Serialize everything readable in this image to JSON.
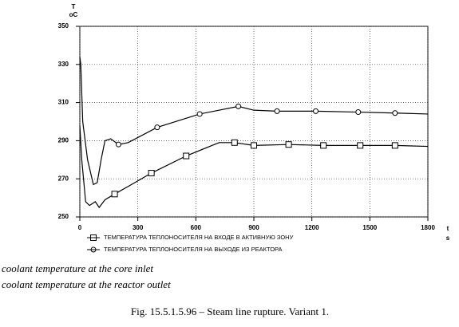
{
  "chart_data": {
    "type": "line",
    "ylabel": "T",
    "yunit": "oC",
    "xlabel": "t",
    "xunit": "s",
    "xlim": [
      0,
      1800
    ],
    "xticks": [
      0,
      300,
      600,
      900,
      1200,
      1500,
      1800
    ],
    "ylim": [
      250,
      350
    ],
    "yticks": [
      250,
      270,
      290,
      310,
      330,
      350
    ],
    "grid": true,
    "series": [
      {
        "name": "ТЕМПЕРАТУРА ТЕПЛОНОСИТЕЛЯ НА ВХОДЕ В АКТИВНУЮ ЗОНУ",
        "marker": "square",
        "color": "#000000",
        "x": [
          0,
          10,
          30,
          50,
          80,
          100,
          130,
          180,
          250,
          370,
          550,
          720,
          800,
          900,
          1080,
          1260,
          1450,
          1630,
          1800
        ],
        "values": [
          298,
          280,
          258,
          256,
          258,
          255,
          259,
          262,
          266,
          273,
          282,
          289,
          289,
          287.5,
          288,
          287.5,
          287.5,
          287.5,
          287
        ]
      },
      {
        "name": "ТЕМПЕРАТУРА ТЕПЛОНОСИТЕЛЯ НА ВЫХОДЕ ИЗ РЕАКТОРА",
        "marker": "circle",
        "color": "#000000",
        "x": [
          0,
          5,
          15,
          40,
          70,
          90,
          110,
          130,
          160,
          200,
          250,
          400,
          620,
          820,
          900,
          1020,
          1220,
          1440,
          1630,
          1800
        ],
        "values": [
          334,
          330,
          300,
          280,
          267,
          268,
          280,
          290,
          291,
          288,
          289,
          297,
          304,
          308,
          306,
          305.5,
          305.5,
          305,
          304.5,
          304
        ]
      }
    ]
  },
  "translations": [
    "coolant temperature   at the core inlet",
    "coolant temperature   at the reactor outlet"
  ],
  "caption": "Fig. 15.5.1.5.96 – Steam line rupture. Variant 1."
}
